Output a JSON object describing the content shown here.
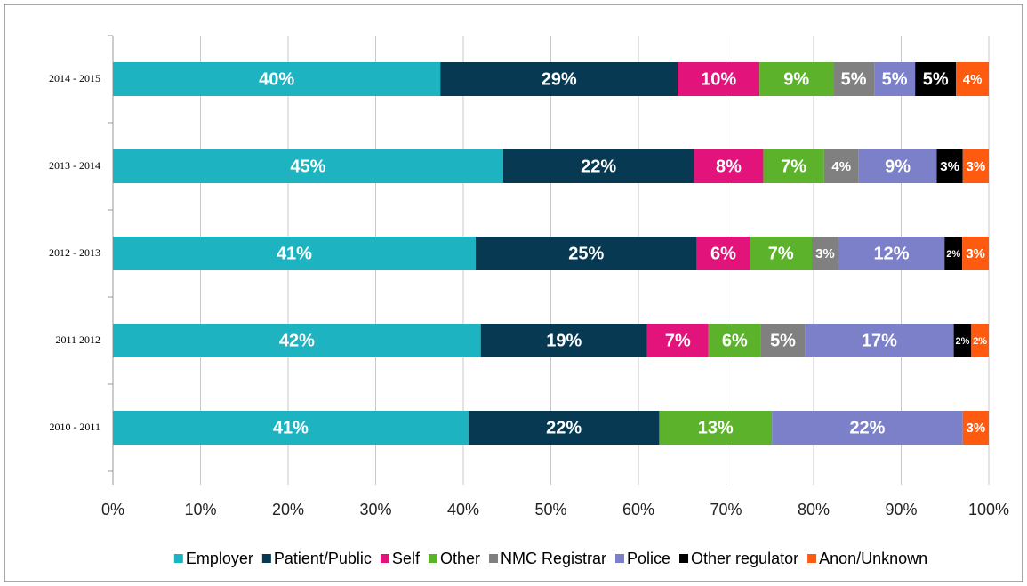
{
  "chart_data": {
    "type": "bar",
    "orientation": "horizontal",
    "stack": "percent",
    "categories": [
      "2014 - 2015",
      "2013 - 2014",
      "2012 - 2013",
      "2011   2012",
      "2010 - 2011"
    ],
    "series": [
      {
        "name": "Employer",
        "color": "#1db3c1",
        "values": [
          40,
          45,
          41,
          42,
          41
        ],
        "value_labels": [
          "40%",
          "45%",
          "41%",
          "42%",
          "41%"
        ]
      },
      {
        "name": "Patient/Public",
        "color": "#073a52",
        "values": [
          29,
          22,
          25,
          19,
          22
        ],
        "value_labels": [
          "29%",
          "22%",
          "25%",
          "19%",
          "22%"
        ]
      },
      {
        "name": "Self",
        "color": "#e2147b",
        "values": [
          10,
          8,
          6,
          7,
          null
        ],
        "value_labels": [
          "10%",
          "8%",
          "6%",
          "7%",
          null
        ]
      },
      {
        "name": "Other",
        "color": "#5cb22b",
        "values": [
          9,
          7,
          7,
          6,
          13
        ],
        "value_labels": [
          "9%",
          "7%",
          "7%",
          "6%",
          "13%"
        ]
      },
      {
        "name": "NMC Registrar",
        "color": "#808080",
        "values": [
          5,
          4,
          3,
          5,
          null
        ],
        "value_labels": [
          "5%",
          "4%",
          "3%",
          "5%",
          null
        ]
      },
      {
        "name": "Police",
        "color": "#7b80c8",
        "values": [
          5,
          9,
          12,
          17,
          22
        ],
        "value_labels": [
          "5%",
          "9%",
          "12%",
          "17%",
          "22%"
        ]
      },
      {
        "name": "Other regulator",
        "color": "#000000",
        "values": [
          5,
          3,
          2,
          2,
          null
        ],
        "value_labels": [
          "5%",
          "3%",
          "2%",
          "2%",
          null
        ]
      },
      {
        "name": "Anon/Unknown",
        "color": "#ff5b10",
        "values": [
          4,
          3,
          3,
          2,
          3
        ],
        "value_labels": [
          "4%",
          "3%",
          "3%",
          "2%",
          "3%"
        ]
      }
    ],
    "xlim": [
      0,
      100
    ],
    "xticks": [
      {
        "value": 0,
        "label": "0%"
      },
      {
        "value": 10,
        "label": "10%"
      },
      {
        "value": 20,
        "label": "20%"
      },
      {
        "value": 30,
        "label": "30%"
      },
      {
        "value": 40,
        "label": "40%"
      },
      {
        "value": 50,
        "label": "50%"
      },
      {
        "value": 60,
        "label": "60%"
      },
      {
        "value": 70,
        "label": "70%"
      },
      {
        "value": 80,
        "label": "80%"
      },
      {
        "value": 90,
        "label": "90%"
      },
      {
        "value": 100,
        "label": "100%"
      }
    ],
    "grid": true,
    "legend": "bottom"
  }
}
